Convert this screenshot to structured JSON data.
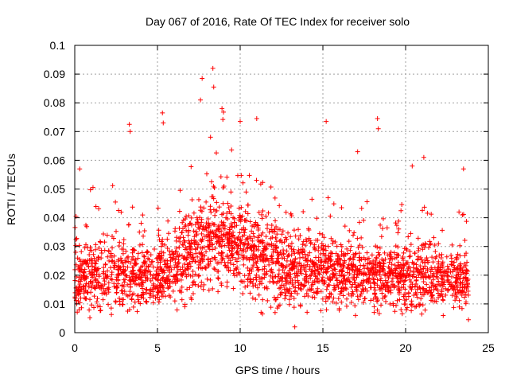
{
  "chart_data": {
    "type": "scatter",
    "title": "Day 067 of 2016, Rate Of TEC Index for receiver solo",
    "xlabel": "GPS time / hours",
    "ylabel": "ROTI / TECUs",
    "xlim": [
      0,
      25
    ],
    "ylim": [
      0,
      0.1
    ],
    "xticks": [
      "0",
      "5",
      "10",
      "15",
      "20",
      "25"
    ],
    "yticks": [
      "0",
      "0.01",
      "0.02",
      "0.03",
      "0.04",
      "0.05",
      "0.06",
      "0.07",
      "0.08",
      "0.09",
      "0.1"
    ],
    "grid": true,
    "marker": "+",
    "marker_color": "#ff0000",
    "time_range_hours": [
      0,
      23.8
    ],
    "baseline_profile": [
      {
        "hour": 0,
        "low": 0.008,
        "median": 0.018,
        "high": 0.045
      },
      {
        "hour": 2,
        "low": 0.007,
        "median": 0.02,
        "high": 0.055
      },
      {
        "hour": 4,
        "low": 0.006,
        "median": 0.018,
        "high": 0.045
      },
      {
        "hour": 6,
        "low": 0.01,
        "median": 0.022,
        "high": 0.05
      },
      {
        "hour": 8,
        "low": 0.012,
        "median": 0.03,
        "high": 0.065
      },
      {
        "hour": 9,
        "low": 0.015,
        "median": 0.032,
        "high": 0.08
      },
      {
        "hour": 11,
        "low": 0.01,
        "median": 0.026,
        "high": 0.055
      },
      {
        "hour": 13,
        "low": 0.006,
        "median": 0.022,
        "high": 0.045
      },
      {
        "hour": 15,
        "low": 0.008,
        "median": 0.021,
        "high": 0.05
      },
      {
        "hour": 18,
        "low": 0.008,
        "median": 0.02,
        "high": 0.045
      },
      {
        "hour": 21,
        "low": 0.007,
        "median": 0.019,
        "high": 0.045
      },
      {
        "hour": 23.8,
        "low": 0.008,
        "median": 0.018,
        "high": 0.042
      }
    ],
    "notable_points": [
      {
        "x": 8.35,
        "y": 0.092
      },
      {
        "x": 8.4,
        "y": 0.0855
      },
      {
        "x": 7.7,
        "y": 0.0885
      },
      {
        "x": 7.6,
        "y": 0.081
      },
      {
        "x": 8.9,
        "y": 0.078
      },
      {
        "x": 5.3,
        "y": 0.0765
      },
      {
        "x": 5.35,
        "y": 0.073
      },
      {
        "x": 3.3,
        "y": 0.0725
      },
      {
        "x": 3.35,
        "y": 0.07
      },
      {
        "x": 10.0,
        "y": 0.0735
      },
      {
        "x": 11.0,
        "y": 0.0745
      },
      {
        "x": 15.2,
        "y": 0.0735
      },
      {
        "x": 18.3,
        "y": 0.0745
      },
      {
        "x": 18.35,
        "y": 0.071
      },
      {
        "x": 17.1,
        "y": 0.063
      },
      {
        "x": 20.4,
        "y": 0.058
      },
      {
        "x": 21.1,
        "y": 0.061
      },
      {
        "x": 23.5,
        "y": 0.057
      },
      {
        "x": 13.3,
        "y": 0.002
      },
      {
        "x": 23.8,
        "y": 0.0045
      },
      {
        "x": 0.3,
        "y": 0.057
      }
    ]
  }
}
